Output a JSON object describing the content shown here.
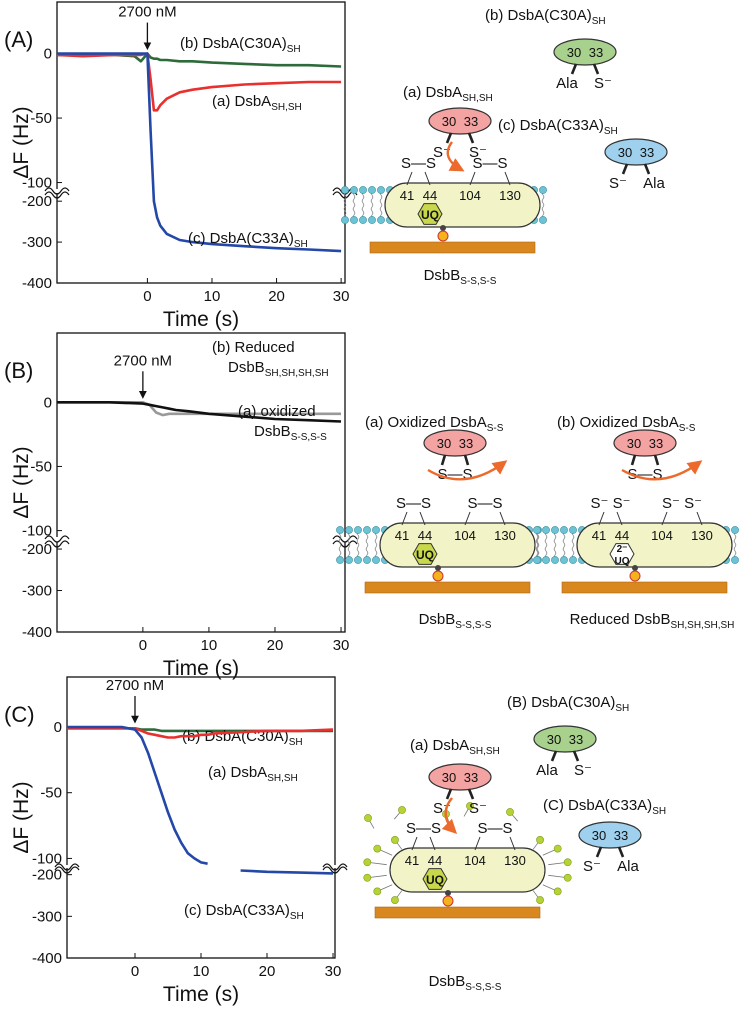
{
  "chart_data": [
    {
      "type": "line",
      "panel": "(A)",
      "xlabel": "Time (s)",
      "ylabel": "ΔF (Hz)",
      "annotation": "2700 nM",
      "xlim": [
        -14,
        30.6
      ],
      "xticks": [
        0,
        10,
        20,
        30
      ],
      "ylim": [
        -400,
        40
      ],
      "ybreak": [
        -105,
        -180
      ],
      "yticks": [
        0,
        -50,
        -100,
        -200,
        -300,
        -400
      ],
      "x": [
        -14,
        -10,
        -5,
        -2,
        -1,
        0,
        0.5,
        1,
        1.5,
        2,
        3,
        5,
        7,
        10,
        15,
        20,
        25,
        30
      ],
      "series": [
        {
          "name": [
            "(b) DsbA(C30A)"
          ],
          "name_sub": "SH",
          "color": "#2e6b3a",
          "values": [
            -1,
            -1,
            -1,
            -2,
            -6,
            0,
            -3,
            -4,
            -4,
            -5,
            -5,
            -6,
            -6,
            -7,
            -8,
            -9,
            -9,
            -10
          ]
        },
        {
          "name": [
            "(a) DsbA"
          ],
          "name_sub": "SH,SH",
          "color": "#e8312f",
          "values": [
            -1,
            -2,
            -1,
            -1,
            -1,
            0,
            -20,
            -44,
            -44,
            -40,
            -35,
            -30,
            -28,
            -26,
            -24,
            -23,
            -22,
            -22
          ]
        },
        {
          "name": [
            "(c) DsbA(C33A)"
          ],
          "name_sub": "SH",
          "color": "#2448a8",
          "values": [
            0,
            0,
            0,
            0,
            0,
            0,
            -60,
            -200,
            -240,
            -260,
            -280,
            -295,
            -300,
            -305,
            -310,
            -315,
            -318,
            -322
          ]
        }
      ]
    },
    {
      "type": "line",
      "panel": "(B)",
      "xlabel": "Time (s)",
      "ylabel": "ΔF (Hz)",
      "annotation": "2700 nM",
      "xlim": [
        -13,
        30.6
      ],
      "xticks": [
        0,
        10,
        20,
        30
      ],
      "ylim": [
        -400,
        54
      ],
      "ybreak": [
        -105,
        -183
      ],
      "yticks": [
        0,
        -50,
        -100,
        -200,
        -300,
        -400
      ],
      "x": [
        -13,
        -10,
        -5,
        0,
        1,
        2,
        3,
        4,
        5,
        7,
        10,
        15,
        20,
        25,
        30
      ],
      "series": [
        {
          "name": [
            "(b) Reduced",
            "DsbB"
          ],
          "name_sub": "SH,SH,SH,SH",
          "color": "#999999",
          "values": [
            0,
            0,
            0,
            0,
            -2,
            -8,
            -10,
            -9,
            -9,
            -9,
            -9,
            -9,
            -9,
            -9,
            -9
          ]
        },
        {
          "name": [
            "(a) oxidized",
            "DsbB"
          ],
          "name_sub": "S-S,S-S",
          "color": "#111111",
          "values": [
            0,
            0,
            0,
            -1,
            -2,
            -3,
            -4,
            -5,
            -6,
            -7,
            -9,
            -11,
            -13,
            -14,
            -15
          ]
        }
      ]
    },
    {
      "type": "line",
      "panel": "(C)",
      "xlabel": "Time (s)",
      "ylabel": "ΔF (Hz)",
      "annotation": "2700 nM",
      "xlim": [
        -10.3,
        30.3
      ],
      "xticks": [
        0,
        10,
        20,
        30
      ],
      "ylim": [
        -400,
        38
      ],
      "ybreak": [
        -105,
        -184
      ],
      "yticks": [
        0,
        -50,
        -100,
        -200,
        -300,
        -400
      ],
      "x": [
        -10.3,
        -5,
        -2,
        0,
        1,
        2,
        3,
        4,
        5,
        6,
        7,
        8,
        9,
        10,
        11,
        12,
        16,
        20,
        25,
        30
      ],
      "series": [
        {
          "name": [
            "(b) DsbA(C30A)"
          ],
          "name_sub": "SH",
          "color": "#2e6b3a",
          "values": [
            -1,
            -1,
            -1,
            -1,
            -2,
            -2,
            -2,
            -3,
            -3,
            -3,
            -3,
            -3,
            -3,
            -3,
            -3,
            -3,
            -3,
            -3,
            -3,
            -3
          ]
        },
        {
          "name": [
            "(a) DsbA"
          ],
          "name_sub": "SH,SH",
          "color": "#e8312f",
          "values": [
            -1,
            -1,
            -1,
            -1,
            -3,
            -5,
            -6,
            -7,
            -8,
            -8,
            -7,
            -7,
            -7,
            -6,
            -6,
            -5,
            -4,
            -3,
            -3,
            -2
          ]
        },
        {
          "name": [
            "(c) DsbA(C33A)"
          ],
          "name_sub": "SH",
          "color": "#2448a8",
          "values": [
            0,
            0,
            0,
            -2,
            -8,
            -20,
            -35,
            -50,
            -65,
            -78,
            -88,
            -96,
            -100,
            -103,
            -104,
            null,
            -190,
            -193,
            -195,
            -197
          ]
        }
      ]
    }
  ],
  "schematics": [
    {
      "dsba": [
        {
          "label": "(b) DsbA(C30A)",
          "sub": "SH",
          "residues": [
            "30",
            "33"
          ],
          "bottom": [
            "Ala",
            "S⁻"
          ]
        },
        {
          "label": "(a) DsbA",
          "sub": "SH,SH",
          "residues": [
            "30",
            "33"
          ],
          "bottom": [
            "S⁻",
            "S⁻"
          ]
        },
        {
          "label": "(c) DsbA(C33A)",
          "sub": "SH",
          "residues": [
            "30",
            "33"
          ],
          "bottom": [
            "S⁻",
            "Ala"
          ]
        }
      ],
      "dsbb": [
        {
          "label": "DsbB",
          "sub": "S-S,S-S",
          "residues": [
            "41",
            "44",
            "104",
            "130"
          ],
          "bonds": [
            "S—S",
            "S—S"
          ],
          "uq": [
            "UQ"
          ]
        }
      ]
    },
    {
      "dsba": [
        {
          "label": "(a) Oxidized DsbA",
          "sub": "S-S",
          "residues": [
            "30",
            "33"
          ],
          "bottom": [
            "S—S"
          ]
        },
        {
          "label": "(b) Oxidized DsbA",
          "sub": "S-S",
          "residues": [
            "30",
            "33"
          ],
          "bottom": [
            "S—S"
          ]
        }
      ],
      "dsbb": [
        {
          "label": "DsbB",
          "sub": "S-S,S-S",
          "residues": [
            "41",
            "44",
            "104",
            "130"
          ],
          "bonds": [
            "S—S",
            "S—S"
          ],
          "uq": [
            "UQ"
          ]
        },
        {
          "label": "Reduced DsbB",
          "sub": "SH,SH,SH,SH",
          "residues": [
            "41",
            "44",
            "104",
            "130"
          ],
          "bonds": [
            "S⁻   S⁻",
            "S⁻   S⁻"
          ],
          "uq": [
            "2⁻",
            "UQ"
          ]
        }
      ]
    },
    {
      "dsba": [
        {
          "label": "(B) DsbA(C30A)",
          "sub": "SH",
          "residues": [
            "30",
            "33"
          ],
          "bottom": [
            "Ala",
            "S⁻"
          ]
        },
        {
          "label": "(a) DsbA",
          "sub": "SH,SH",
          "residues": [
            "30",
            "33"
          ],
          "bottom": [
            "S⁻",
            "S⁻"
          ]
        },
        {
          "label": "(C) DsbA(C33A)",
          "sub": "SH",
          "residues": [
            "30",
            "33"
          ],
          "bottom": [
            "S⁻",
            "Ala"
          ]
        }
      ],
      "dsbb": [
        {
          "label": "DsbB",
          "sub": "S-S,S-S",
          "residues": [
            "41",
            "44",
            "104",
            "130"
          ],
          "bonds": [
            "S—S",
            "S—S"
          ],
          "uq": [
            "UQ"
          ]
        }
      ]
    }
  ]
}
